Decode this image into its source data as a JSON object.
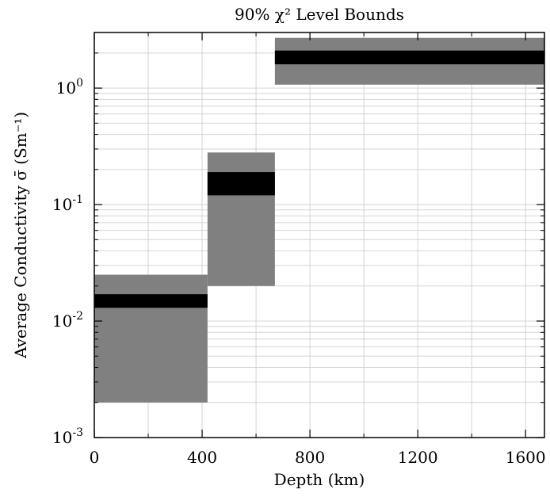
{
  "chart_data": {
    "type": "bar",
    "title": "90% χ² Level Bounds",
    "xlabel": "Depth (km)",
    "ylabel": "Average Conductivity σ̄ (Sm⁻¹)",
    "xlim": [
      0,
      1670
    ],
    "ylim": [
      0.001,
      3.0
    ],
    "yscale": "log",
    "grid": true,
    "x_tick_labels": [
      "0",
      "400",
      "800",
      "1200",
      "1600"
    ],
    "x_ticks": [
      0,
      400,
      800,
      1200,
      1600
    ],
    "x_minor_ticks": [
      200,
      600,
      1000,
      1400
    ],
    "y_tick_labels": [
      {
        "base": "10",
        "exp": "-3",
        "value": 0.001
      },
      {
        "base": "10",
        "exp": "-2",
        "value": 0.01
      },
      {
        "base": "10",
        "exp": "-1",
        "value": 0.1
      },
      {
        "base": "10",
        "exp": "0",
        "value": 1
      }
    ],
    "bounds_color": "#808080",
    "best_fit_color": "#000000",
    "layers": [
      {
        "depth_range": [
          0,
          420
        ],
        "bound_range": [
          0.002,
          0.025
        ],
        "best_fit_range": [
          0.013,
          0.017
        ]
      },
      {
        "depth_range": [
          420,
          670
        ],
        "bound_range": [
          0.02,
          0.28
        ],
        "best_fit_range": [
          0.12,
          0.19
        ]
      },
      {
        "depth_range": [
          670,
          1670
        ],
        "bound_range": [
          1.07,
          2.7
        ],
        "best_fit_range": [
          1.6,
          2.1
        ]
      }
    ]
  }
}
